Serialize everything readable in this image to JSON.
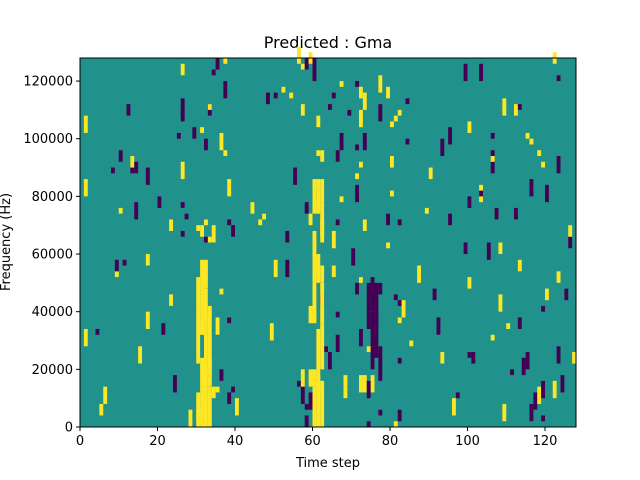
{
  "chart_data": {
    "type": "heatmap",
    "title": "Predicted : Gma",
    "xlabel": "Time step",
    "ylabel": "Frequency (Hz)",
    "xlim": [
      0,
      128
    ],
    "ylim": [
      0,
      128000
    ],
    "x_ticks": [
      0,
      20,
      40,
      60,
      80,
      100,
      120
    ],
    "y_ticks": [
      0,
      20000,
      40000,
      60000,
      80000,
      100000,
      120000
    ],
    "y_tick_labels": [
      "0",
      "20000",
      "40000",
      "60000",
      "80000",
      "100000",
      "120000"
    ],
    "grid": false,
    "colormap": "viridis",
    "colors": {
      "background_value": "#21918c",
      "low_value": "#440154",
      "high_value": "#fde725"
    },
    "dominant_features": [
      {
        "value": "high",
        "x": [
          60,
          63
        ],
        "y": [
          0,
          86000
        ]
      },
      {
        "value": "high",
        "x": [
          30,
          34
        ],
        "y": [
          0,
          58000
        ]
      },
      {
        "value": "low",
        "x": [
          74,
          78
        ],
        "y": [
          10000,
          50000
        ]
      }
    ]
  }
}
